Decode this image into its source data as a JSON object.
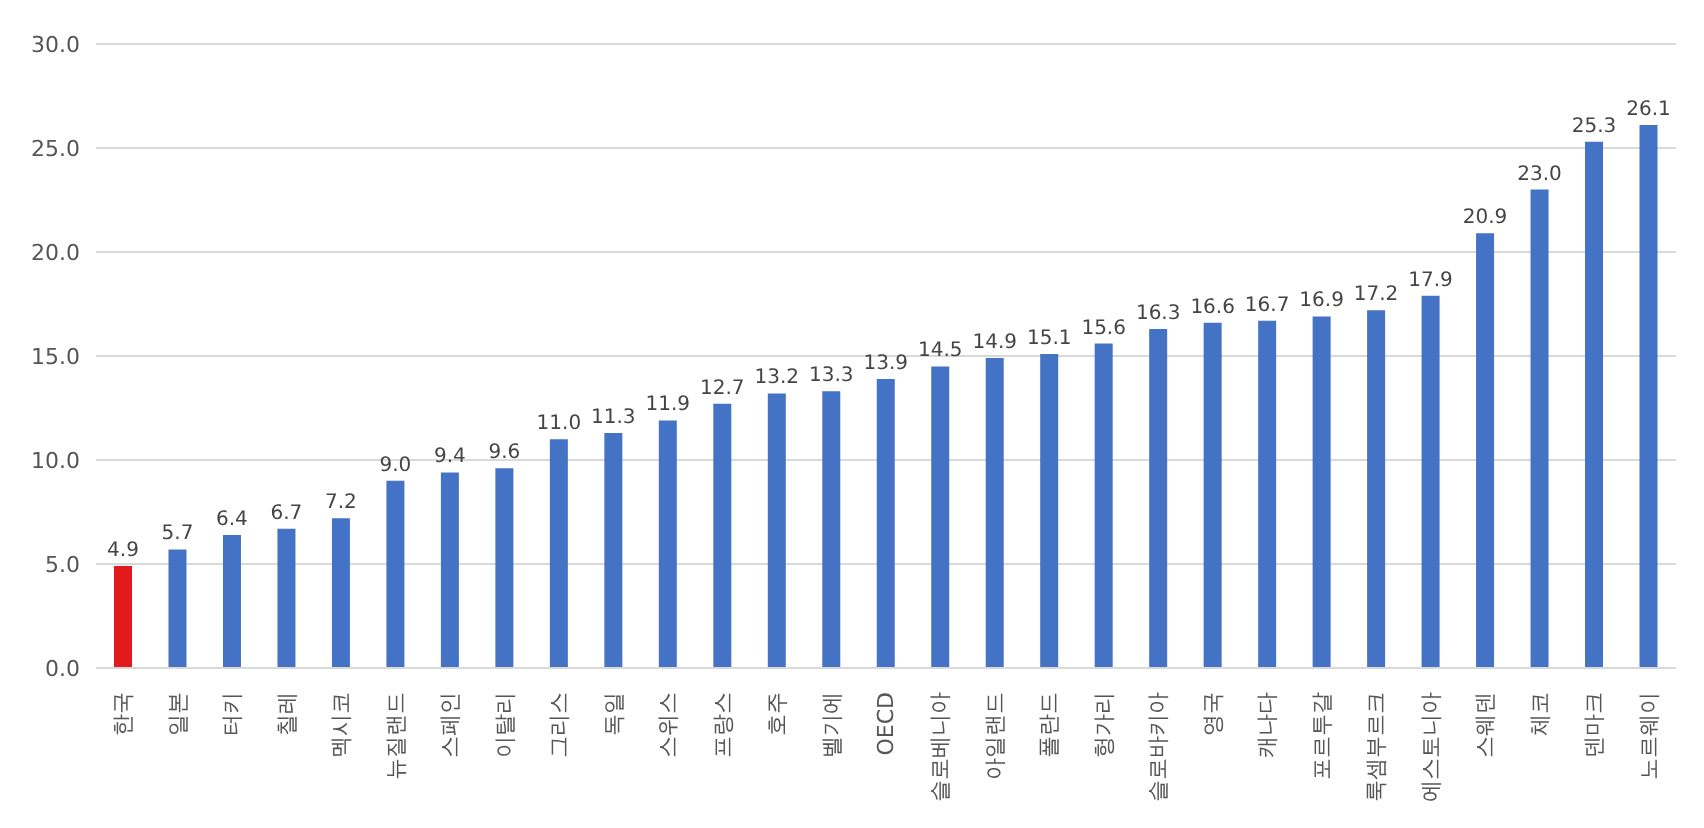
{
  "chart_data": {
    "type": "bar",
    "categories": [
      "한국",
      "일본",
      "터키",
      "칠레",
      "멕시코",
      "뉴질랜드",
      "스페인",
      "이탈리",
      "그리스",
      "독일",
      "스위스",
      "프랑스",
      "호주",
      "벨기에",
      "OECD",
      "슬로베니아",
      "아일랜드",
      "폴란드",
      "헝가리",
      "슬로바키아",
      "영국",
      "캐나다",
      "포르투갈",
      "룩셈부르크",
      "에스토니아",
      "스웨덴",
      "체코",
      "덴마크",
      "노르웨이"
    ],
    "values": [
      4.9,
      5.7,
      6.4,
      6.7,
      7.2,
      9.0,
      9.4,
      9.6,
      11.0,
      11.3,
      11.9,
      12.7,
      13.2,
      13.3,
      13.9,
      14.5,
      14.9,
      15.1,
      15.6,
      16.3,
      16.6,
      16.7,
      16.9,
      17.2,
      17.9,
      20.9,
      23.0,
      25.3,
      26.1
    ],
    "value_labels": [
      "4.9",
      "5.7",
      "6.4",
      "6.7",
      "7.2",
      "9.0",
      "9.4",
      "9.6",
      "11.0",
      "11.3",
      "11.9",
      "12.7",
      "13.2",
      "13.3",
      "13.9",
      "14.5",
      "14.9",
      "15.1",
      "15.6",
      "16.3",
      "16.6",
      "16.7",
      "16.9",
      "17.2",
      "17.9",
      "20.9",
      "23.0",
      "25.3",
      "26.1"
    ],
    "colors": [
      "#e31a1c",
      "#4472c4",
      "#4472c4",
      "#4472c4",
      "#4472c4",
      "#4472c4",
      "#4472c4",
      "#4472c4",
      "#4472c4",
      "#4472c4",
      "#4472c4",
      "#4472c4",
      "#4472c4",
      "#4472c4",
      "#4472c4",
      "#4472c4",
      "#4472c4",
      "#4472c4",
      "#4472c4",
      "#4472c4",
      "#4472c4",
      "#4472c4",
      "#4472c4",
      "#4472c4",
      "#4472c4",
      "#4472c4",
      "#4472c4",
      "#4472c4",
      "#4472c4"
    ],
    "ylim": [
      0,
      30
    ],
    "yticks": [
      {
        "value": 0,
        "label": "0.0"
      },
      {
        "value": 5,
        "label": "5.0"
      },
      {
        "value": 10,
        "label": "10.0"
      },
      {
        "value": 15,
        "label": "15.0"
      },
      {
        "value": 20,
        "label": "20.0"
      },
      {
        "value": 25,
        "label": "25.0"
      },
      {
        "value": 30,
        "label": "30.0"
      }
    ],
    "grid": "y"
  }
}
